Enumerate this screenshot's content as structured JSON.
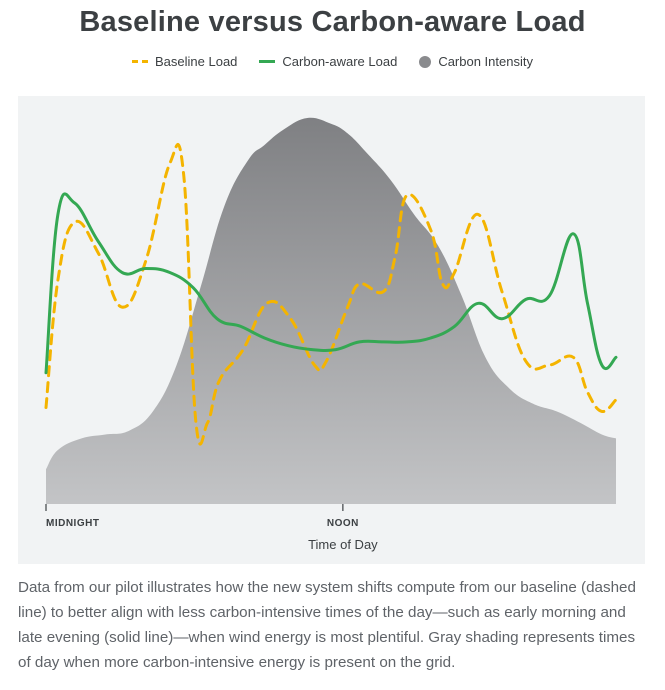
{
  "page": {
    "title": "Baseline versus Carbon-aware Load",
    "caption": "Data from our pilot illustrates how the new system shifts compute from our baseline (dashed line) to better align with less carbon-intensive times of the day—such as early morning and late evening (solid line)—when wind energy is most plentiful. Gray shading represents times of day when more carbon-intensive energy is present on the grid."
  },
  "legend": [
    {
      "label": "Baseline Load",
      "style": "dashed",
      "color": "#f4b400"
    },
    {
      "label": "Carbon-aware Load",
      "style": "solid",
      "color": "#34a853"
    },
    {
      "label": "Carbon Intensity",
      "style": "dot",
      "color": "#8a8b8e"
    }
  ],
  "colors": {
    "panel_background": "#f1f3f4",
    "baseline": "#f4b400",
    "carbon_aware": "#34a853",
    "intensity_top": "#7f8083",
    "intensity_bottom": "#c3c4c6",
    "text": "#3c4043"
  },
  "chart_data": {
    "type": "line",
    "title": "Baseline versus Carbon-aware Load",
    "xlabel": "Time of Day",
    "ylabel": "",
    "xlim": [
      0,
      24
    ],
    "ylim": [
      0,
      100
    ],
    "grid": false,
    "legend_position": "top-center",
    "x_ticks": [
      {
        "x": 0,
        "label": "MIDNIGHT"
      },
      {
        "x": 12.5,
        "label": "NOON"
      }
    ],
    "series": [
      {
        "name": "Carbon Intensity",
        "kind": "area",
        "x": [
          0,
          0.5,
          1.5,
          2.5,
          3.5,
          4.5,
          5.5,
          6.5,
          7.5,
          8.5,
          9.2,
          10.0,
          11.0,
          12.0,
          12.7,
          13.5,
          14.5,
          15.5,
          16.5,
          17.5,
          18.5,
          19.5,
          20.5,
          21.5,
          22.5,
          23.4,
          24.0
        ],
        "values": [
          9,
          14,
          17,
          18,
          19,
          24,
          36,
          56,
          77,
          89,
          93,
          97,
          100,
          98.5,
          96,
          91,
          84,
          75,
          67,
          54,
          38,
          30,
          26,
          24,
          21,
          18,
          17
        ]
      },
      {
        "name": "Baseline Load",
        "kind": "dashed-line",
        "x": [
          0,
          0.5,
          1.2,
          2.2,
          3.2,
          4.2,
          5.2,
          5.8,
          6.3,
          6.8,
          7.3,
          8.3,
          9.3,
          10.3,
          11.3,
          11.8,
          12.7,
          13.2,
          14.2,
          14.7,
          15.2,
          16.2,
          16.7,
          17.2,
          18.2,
          19.2,
          20.2,
          21.2,
          22.2,
          22.8,
          23.4,
          24.0
        ],
        "values": [
          25,
          58,
          73,
          65,
          51,
          63,
          88,
          85,
          22,
          21,
          32,
          40,
          52,
          48,
          36,
          37,
          51,
          57,
          55,
          64,
          80,
          71,
          57,
          60,
          75,
          55,
          37,
          36,
          38,
          29,
          24,
          27
        ]
      },
      {
        "name": "Carbon-aware Load",
        "kind": "solid-line",
        "x": [
          0,
          0.5,
          1.2,
          2.2,
          3.2,
          4.2,
          5.2,
          6.2,
          7.2,
          8.2,
          9.2,
          10.2,
          11.2,
          12.2,
          13.2,
          14.2,
          15.2,
          16.2,
          17.2,
          18.2,
          19.2,
          20.2,
          21.2,
          22.2,
          22.8,
          23.4,
          24.0
        ],
        "values": [
          34,
          75,
          78,
          68,
          60,
          61,
          60,
          56,
          48,
          46,
          43,
          41,
          40,
          40,
          42,
          42,
          42,
          43,
          46,
          52,
          48,
          53,
          54,
          70,
          52,
          36,
          38
        ]
      }
    ]
  }
}
